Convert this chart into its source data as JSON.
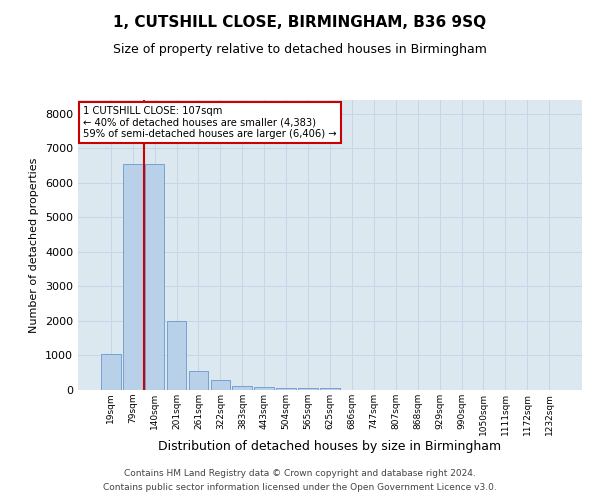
{
  "title": "1, CUTSHILL CLOSE, BIRMINGHAM, B36 9SQ",
  "subtitle": "Size of property relative to detached houses in Birmingham",
  "xlabel": "Distribution of detached houses by size in Birmingham",
  "ylabel": "Number of detached properties",
  "footer_line1": "Contains HM Land Registry data © Crown copyright and database right 2024.",
  "footer_line2": "Contains public sector information licensed under the Open Government Licence v3.0.",
  "categories": [
    "19sqm",
    "79sqm",
    "140sqm",
    "201sqm",
    "261sqm",
    "322sqm",
    "383sqm",
    "443sqm",
    "504sqm",
    "565sqm",
    "625sqm",
    "686sqm",
    "747sqm",
    "807sqm",
    "868sqm",
    "929sqm",
    "990sqm",
    "1050sqm",
    "1111sqm",
    "1172sqm",
    "1232sqm"
  ],
  "values": [
    1050,
    6550,
    6550,
    2000,
    550,
    300,
    125,
    75,
    50,
    50,
    50,
    0,
    0,
    0,
    0,
    0,
    0,
    0,
    0,
    0,
    0
  ],
  "bar_color": "#b8d0e8",
  "bar_edge_color": "#6699cc",
  "annotation_text": "1 CUTSHILL CLOSE: 107sqm\n← 40% of detached houses are smaller (4,383)\n59% of semi-detached houses are larger (6,406) →",
  "annotation_box_color": "#ffffff",
  "annotation_border_color": "#cc0000",
  "vline_color": "#cc0000",
  "ylim": [
    0,
    8400
  ],
  "yticks": [
    0,
    1000,
    2000,
    3000,
    4000,
    5000,
    6000,
    7000,
    8000
  ],
  "grid_color": "#c8d4e8",
  "background_color": "#dce8f0",
  "title_fontsize": 11,
  "subtitle_fontsize": 9,
  "footer_fontsize": 6.5,
  "ylabel_fontsize": 8,
  "xlabel_fontsize": 9
}
